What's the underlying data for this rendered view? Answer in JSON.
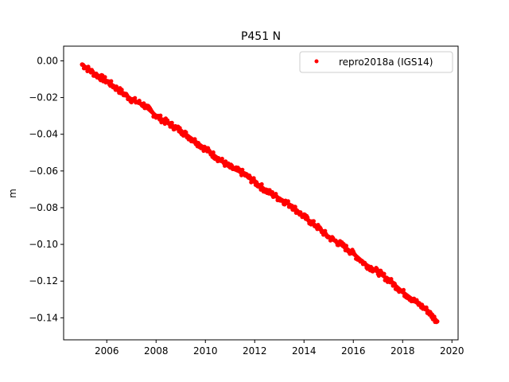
{
  "chart_data": {
    "type": "scatter",
    "title": "P451 N",
    "xlabel": "",
    "ylabel": "m",
    "xlim": [
      2004.25,
      2020.25
    ],
    "ylim": [
      -0.152,
      0.008
    ],
    "x_ticks": [
      2006,
      2008,
      2010,
      2012,
      2014,
      2016,
      2018,
      2020
    ],
    "y_ticks": [
      0.0,
      -0.02,
      -0.04,
      -0.06,
      -0.08,
      -0.1,
      -0.12,
      -0.14
    ],
    "y_tick_labels": [
      "0.00",
      "−0.02",
      "−0.04",
      "−0.06",
      "−0.08",
      "−0.10",
      "−0.12",
      "−0.14"
    ],
    "grid": false,
    "legend_position": "top-right",
    "series": [
      {
        "name": "repro2018a (IGS14)",
        "color": "#ff0000",
        "marker": "dot",
        "x": [
          2005.0,
          2005.5,
          2006.0,
          2006.5,
          2007.0,
          2007.5,
          2008.0,
          2008.5,
          2009.0,
          2009.5,
          2010.0,
          2010.5,
          2011.0,
          2011.5,
          2012.0,
          2012.5,
          2013.0,
          2013.5,
          2014.0,
          2014.5,
          2015.0,
          2015.5,
          2016.0,
          2016.5,
          2017.0,
          2017.5,
          2018.0,
          2018.5,
          2019.0,
          2019.4
        ],
        "y": [
          -0.002,
          -0.007,
          -0.011,
          -0.016,
          -0.021,
          -0.024,
          -0.03,
          -0.034,
          -0.038,
          -0.043,
          -0.048,
          -0.053,
          -0.058,
          -0.061,
          -0.066,
          -0.071,
          -0.075,
          -0.079,
          -0.085,
          -0.09,
          -0.096,
          -0.1,
          -0.105,
          -0.111,
          -0.115,
          -0.12,
          -0.126,
          -0.131,
          -0.136,
          -0.142
        ]
      }
    ]
  }
}
